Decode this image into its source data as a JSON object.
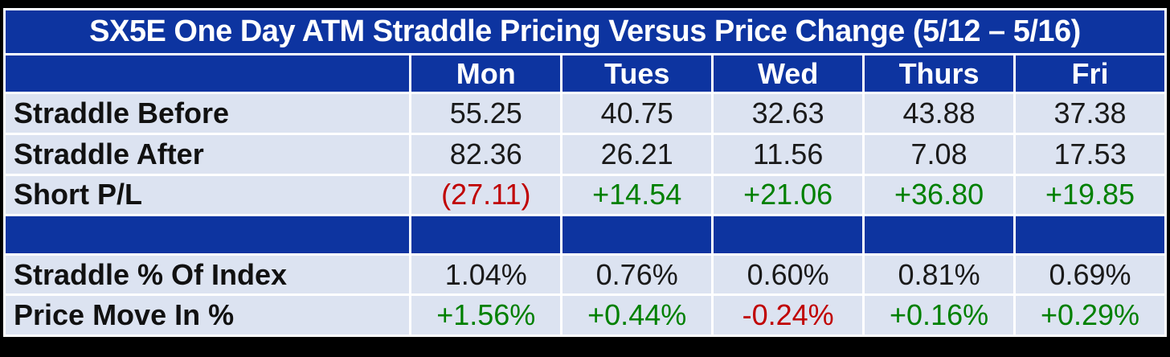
{
  "title": "SX5E One Day ATM Straddle Pricing Versus Price Change (5/12 – 5/16)",
  "columns": [
    "Mon",
    "Tues",
    "Wed",
    "Thurs",
    "Fri"
  ],
  "corner_label": "",
  "rows": [
    {
      "type": "data",
      "label": "Straddle Before",
      "values": [
        "55.25",
        "40.75",
        "32.63",
        "43.88",
        "37.38"
      ],
      "colors": [
        "black",
        "black",
        "black",
        "black",
        "black"
      ]
    },
    {
      "type": "data",
      "label": "Straddle After",
      "values": [
        "82.36",
        "26.21",
        "11.56",
        "7.08",
        "17.53"
      ],
      "colors": [
        "black",
        "black",
        "black",
        "black",
        "black"
      ]
    },
    {
      "type": "data",
      "label": "Short P/L",
      "values": [
        "(27.11)",
        "+14.54",
        "+21.06",
        "+36.80",
        "+19.85"
      ],
      "colors": [
        "red",
        "green",
        "green",
        "green",
        "green"
      ]
    },
    {
      "type": "separator",
      "label": "",
      "values": [
        "",
        "",
        "",
        "",
        ""
      ],
      "colors": [
        "black",
        "black",
        "black",
        "black",
        "black"
      ]
    },
    {
      "type": "data",
      "label": "Straddle % Of Index",
      "values": [
        "1.04%",
        "0.76%",
        "0.60%",
        "0.81%",
        "0.69%"
      ],
      "colors": [
        "black",
        "black",
        "black",
        "black",
        "black"
      ]
    },
    {
      "type": "data",
      "label": "Price Move In %",
      "values": [
        "+1.56%",
        "+0.44%",
        "-0.24%",
        "+0.16%",
        "+0.29%"
      ],
      "colors": [
        "green",
        "green",
        "red",
        "green",
        "green"
      ]
    }
  ],
  "colors": {
    "header_blue": "#0d34a0",
    "cell_light": "#dce3f1",
    "negative_red": "#c00000",
    "positive_green": "#008000",
    "frame_black": "#000000",
    "divider_white": "#ffffff"
  },
  "chart_data": {
    "type": "table",
    "title": "SX5E One Day ATM Straddle Pricing Versus Price Change (5/12 – 5/16)",
    "categories": [
      "Mon",
      "Tues",
      "Wed",
      "Thurs",
      "Fri"
    ],
    "series": [
      {
        "name": "Straddle Before",
        "values": [
          55.25,
          40.75,
          32.63,
          43.88,
          37.38
        ]
      },
      {
        "name": "Straddle After",
        "values": [
          82.36,
          26.21,
          11.56,
          7.08,
          17.53
        ]
      },
      {
        "name": "Short P/L",
        "values": [
          -27.11,
          14.54,
          21.06,
          36.8,
          19.85
        ]
      },
      {
        "name": "Straddle % Of Index",
        "values": [
          1.04,
          0.76,
          0.6,
          0.81,
          0.69
        ]
      },
      {
        "name": "Price Move In %",
        "values": [
          1.56,
          0.44,
          -0.24,
          0.16,
          0.29
        ]
      }
    ],
    "layout_hints": {
      "first_column": "row labels",
      "negative_format": "parentheses or minus sign, red",
      "positive_format": "plus sign prefix, green",
      "grid": "white divider lines on royal blue / pale blue cells"
    }
  }
}
